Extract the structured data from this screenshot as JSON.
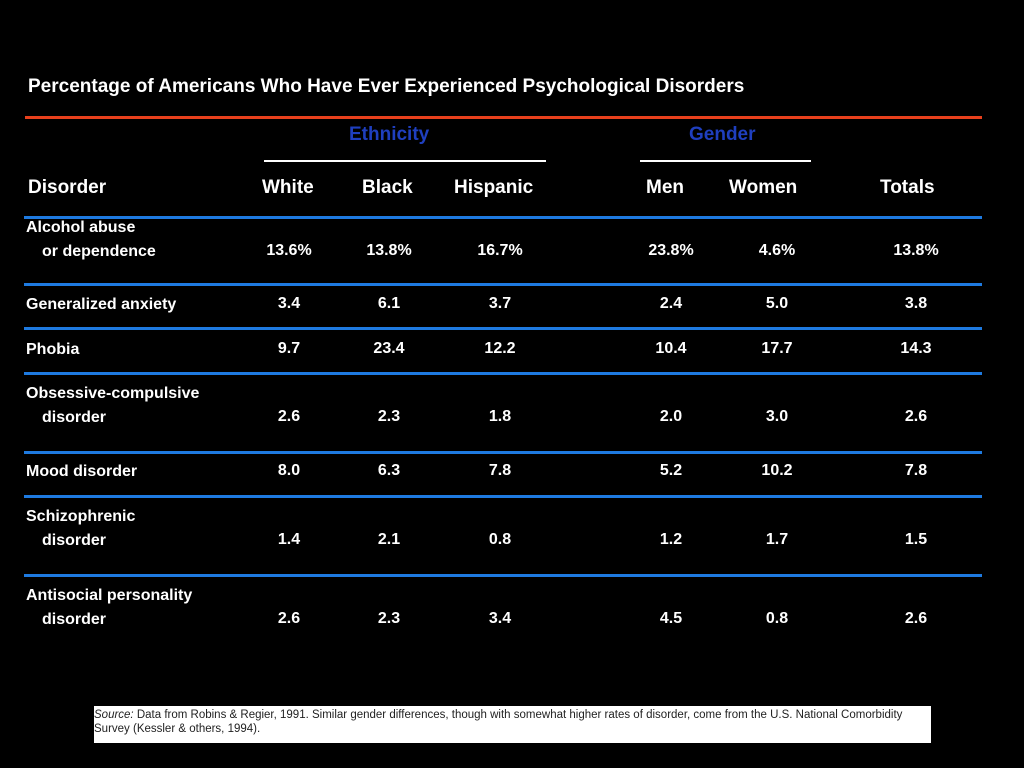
{
  "chart_data": {
    "type": "table",
    "title": "Percentage of Americans Who Have Ever Experienced Psychological Disorders",
    "groups": [
      {
        "label": "Ethnicity",
        "columns": [
          "White",
          "Black",
          "Hispanic"
        ]
      },
      {
        "label": "Gender",
        "columns": [
          "Men",
          "Women"
        ]
      }
    ],
    "columns": [
      "Disorder",
      "White",
      "Black",
      "Hispanic",
      "Men",
      "Women",
      "Totals"
    ],
    "rows": [
      {
        "line1": "Alcohol abuse",
        "line2": "or dependence",
        "values": [
          "13.6%",
          "13.8%",
          "16.7%",
          "23.8%",
          "4.6%",
          "13.8%"
        ]
      },
      {
        "line1": "Generalized anxiety",
        "line2": "",
        "values": [
          "3.4",
          "6.1",
          "3.7",
          "2.4",
          "5.0",
          "3.8"
        ]
      },
      {
        "line1": "Phobia",
        "line2": "",
        "values": [
          "9.7",
          "23.4",
          "12.2",
          "10.4",
          "17.7",
          "14.3"
        ]
      },
      {
        "line1": "Obsessive-compulsive",
        "line2": "disorder",
        "values": [
          "2.6",
          "2.3",
          "1.8",
          "2.0",
          "3.0",
          "2.6"
        ]
      },
      {
        "line1": "Mood disorder",
        "line2": "",
        "values": [
          "8.0",
          "6.3",
          "7.8",
          "5.2",
          "10.2",
          "7.8"
        ]
      },
      {
        "line1": "Schizophrenic",
        "line2": "disorder",
        "values": [
          "1.4",
          "2.1",
          "0.8",
          "1.2",
          "1.7",
          "1.5"
        ]
      },
      {
        "line1": "Antisocial personality",
        "line2": "disorder",
        "values": [
          "2.6",
          "2.3",
          "3.4",
          "4.5",
          "0.8",
          "2.6"
        ]
      }
    ],
    "source_prefix": "Source:",
    "source": "Data from Robins & Regier, 1991. Similar gender differences, though with somewhat higher rates of disorder, come from the U.S. National Comorbidity Survey (Kessler & others, 1994).",
    "colors": {
      "background": "#000000",
      "text": "#ffffff",
      "title_rule": "#e8401c",
      "row_rule": "#1e7ae0",
      "group_label": "#1f3fbf"
    }
  }
}
